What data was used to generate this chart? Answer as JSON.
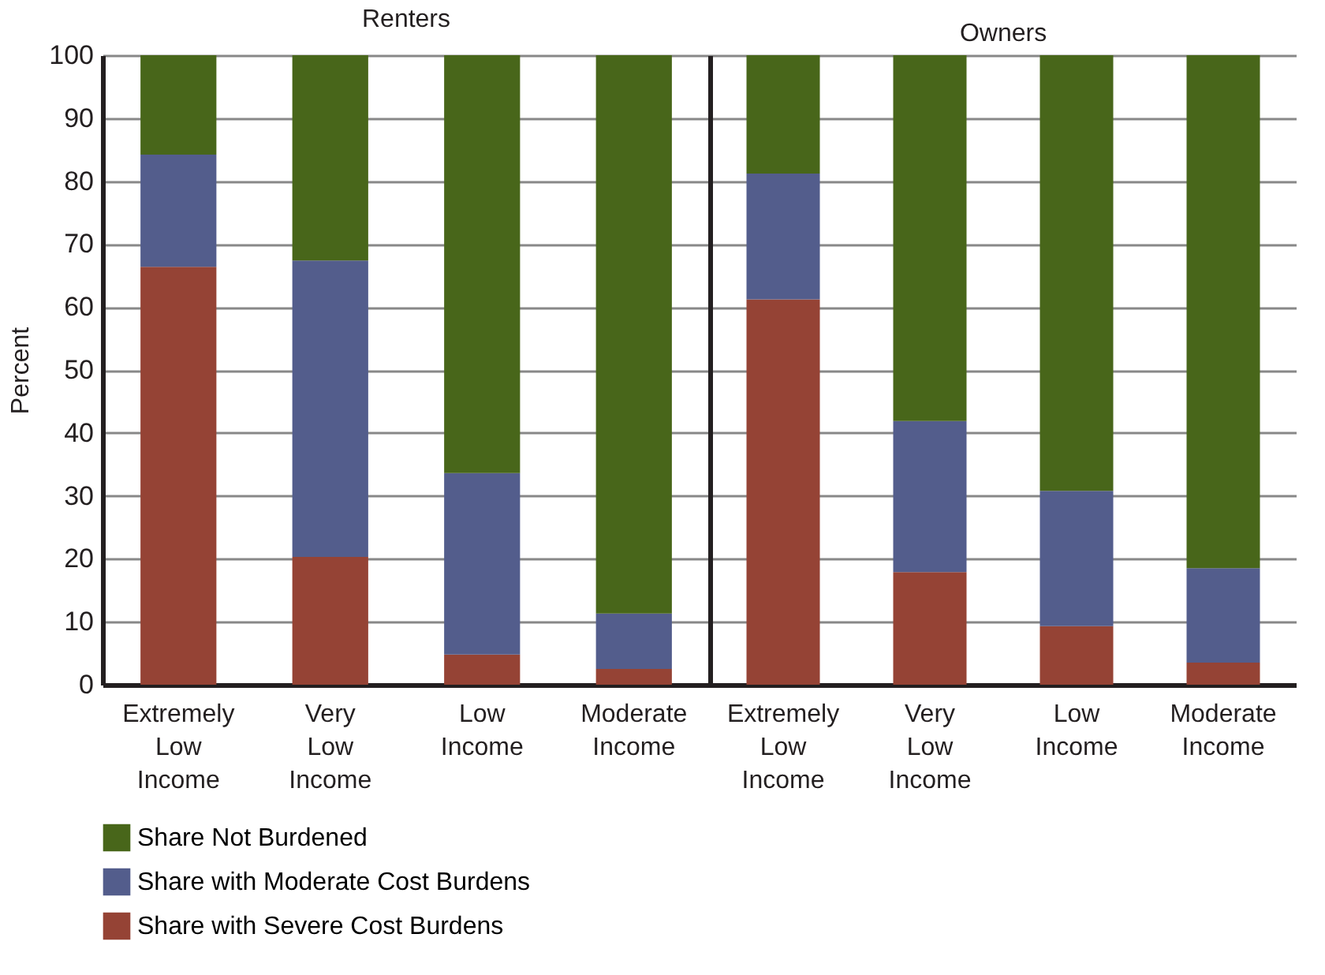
{
  "chart_data": [
    {
      "type": "bar",
      "title": "Renters",
      "ylabel": "Percent",
      "categories": [
        "Extremely Low Income",
        "Very Low Income",
        "Low Income",
        "Moderate Income"
      ],
      "stacked": true,
      "ylim": [
        0,
        100
      ],
      "yticks": [
        0,
        10,
        20,
        30,
        40,
        50,
        60,
        70,
        80,
        90,
        100
      ],
      "grid": "y",
      "legend": "bottom",
      "series": [
        {
          "name": "Share with Severe Cost Burdens",
          "color": "#954335",
          "values": [
            66.4,
            20.3,
            4.8,
            2.5
          ]
        },
        {
          "name": "Share with Moderate Cost Burdens",
          "color": "#535d8c",
          "values": [
            17.8,
            47.1,
            28.8,
            8.8
          ]
        },
        {
          "name": "Share Not Burdened",
          "color": "#48661a",
          "values": [
            15.8,
            32.6,
            66.4,
            88.7
          ]
        }
      ]
    },
    {
      "type": "bar",
      "title": "Owners",
      "categories": [
        "Extremely Low Income",
        "Very Low Income",
        "Low Income",
        "Moderate Income"
      ],
      "stacked": true,
      "ylim": [
        0,
        100
      ],
      "yticks": [
        0,
        10,
        20,
        30,
        40,
        50,
        60,
        70,
        80,
        90,
        100
      ],
      "grid": "y",
      "tick_labels": "x",
      "series": [
        {
          "name": "Share with Severe Cost Burdens",
          "color": "#954335",
          "values": [
            61.2,
            17.9,
            9.3,
            3.5
          ]
        },
        {
          "name": "Share with Moderate Cost Burdens",
          "color": "#535d8c",
          "values": [
            20.0,
            24.0,
            21.5,
            15.0
          ]
        },
        {
          "name": "Share Not Burdened",
          "color": "#48661a",
          "values": [
            18.8,
            58.1,
            69.2,
            81.5
          ]
        }
      ]
    }
  ]
}
